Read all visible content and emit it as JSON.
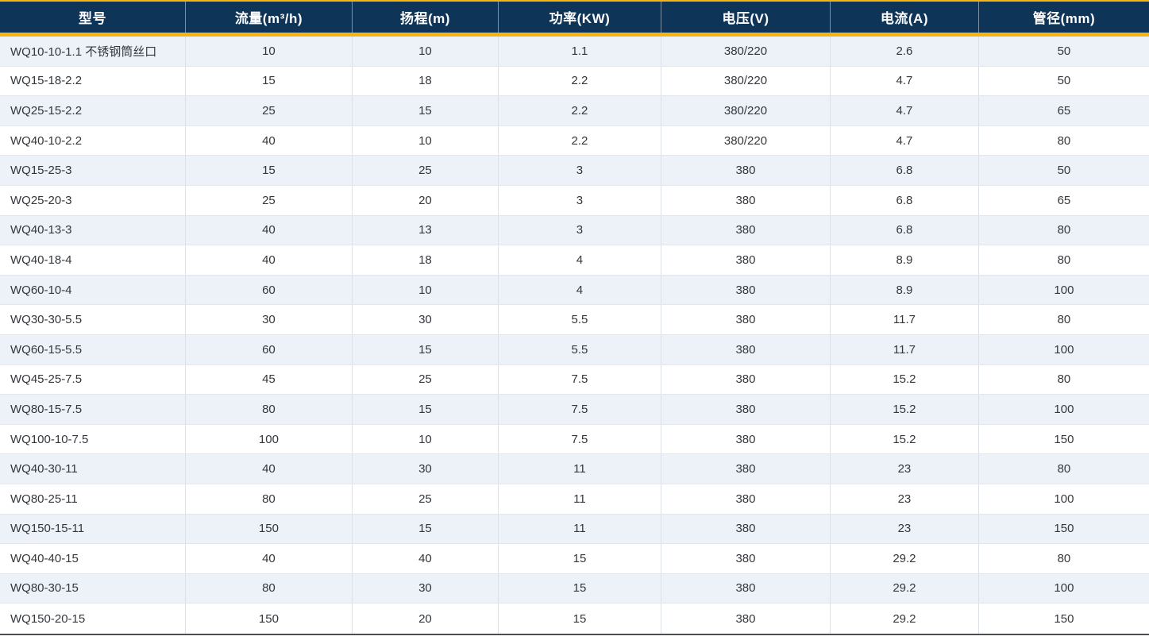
{
  "chart_data": {
    "type": "table",
    "columns": [
      "型号",
      "流量(m³/h)",
      "扬程(m)",
      "功率(KW)",
      "电压(V)",
      "电流(A)",
      "管径(mm)"
    ],
    "rows": [
      [
        "WQ10-10-1.1 不锈钢筒丝口",
        "10",
        "10",
        "1.1",
        "380/220",
        "2.6",
        "50"
      ],
      [
        "WQ15-18-2.2",
        "15",
        "18",
        "2.2",
        "380/220",
        "4.7",
        "50"
      ],
      [
        "WQ25-15-2.2",
        "25",
        "15",
        "2.2",
        "380/220",
        "4.7",
        "65"
      ],
      [
        "WQ40-10-2.2",
        "40",
        "10",
        "2.2",
        "380/220",
        "4.7",
        "80"
      ],
      [
        "WQ15-25-3",
        "15",
        "25",
        "3",
        "380",
        "6.8",
        "50"
      ],
      [
        "WQ25-20-3",
        "25",
        "20",
        "3",
        "380",
        "6.8",
        "65"
      ],
      [
        "WQ40-13-3",
        "40",
        "13",
        "3",
        "380",
        "6.8",
        "80"
      ],
      [
        "WQ40-18-4",
        "40",
        "18",
        "4",
        "380",
        "8.9",
        "80"
      ],
      [
        "WQ60-10-4",
        "60",
        "10",
        "4",
        "380",
        "8.9",
        "100"
      ],
      [
        "WQ30-30-5.5",
        "30",
        "30",
        "5.5",
        "380",
        "11.7",
        "80"
      ],
      [
        "WQ60-15-5.5",
        "60",
        "15",
        "5.5",
        "380",
        "11.7",
        "100"
      ],
      [
        "WQ45-25-7.5",
        "45",
        "25",
        "7.5",
        "380",
        "15.2",
        "80"
      ],
      [
        "WQ80-15-7.5",
        "80",
        "15",
        "7.5",
        "380",
        "15.2",
        "100"
      ],
      [
        "WQ100-10-7.5",
        "100",
        "10",
        "7.5",
        "380",
        "15.2",
        "150"
      ],
      [
        "WQ40-30-11",
        "40",
        "30",
        "11",
        "380",
        "23",
        "80"
      ],
      [
        "WQ80-25-11",
        "80",
        "25",
        "11",
        "380",
        "23",
        "100"
      ],
      [
        "WQ150-15-11",
        "150",
        "15",
        "11",
        "380",
        "23",
        "150"
      ],
      [
        "WQ40-40-15",
        "40",
        "40",
        "15",
        "380",
        "29.2",
        "80"
      ],
      [
        "WQ80-30-15",
        "80",
        "30",
        "15",
        "380",
        "29.2",
        "100"
      ],
      [
        "WQ150-20-15",
        "150",
        "20",
        "15",
        "380",
        "29.2",
        "150"
      ]
    ],
    "layout_hints": {
      "striped_rows": "odd rows tinted",
      "first_column_align": "left",
      "other_columns_align": "center"
    }
  },
  "colors": {
    "header_bg": "#0e3457",
    "header_text": "#ffffff",
    "accent_gold": "#f5b314",
    "stripe_bg": "#edf1f8",
    "row_line": "#e3e7ed",
    "col_line": "#dce1e8",
    "body_text": "#33373c",
    "bottom_line": "#4b4e53"
  }
}
